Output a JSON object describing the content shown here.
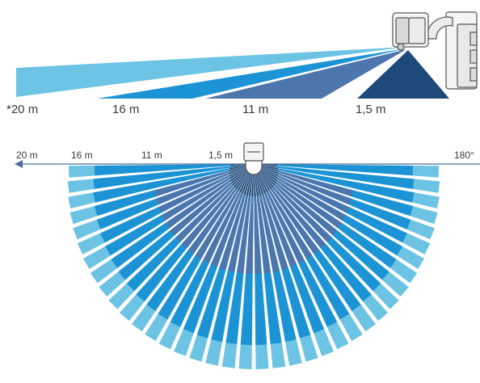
{
  "side_view": {
    "range_labels": [
      "*20 m",
      "16 m",
      "11 m",
      "1,5 m"
    ]
  },
  "top_view": {
    "range_labels": [
      "20 m",
      "16 m",
      "11 m",
      "1,5 m"
    ],
    "angle_label": "180°"
  },
  "zones": [
    {
      "range": "20 m",
      "color": "#6dc3e3"
    },
    {
      "range": "16 m",
      "color": "#1c93d4"
    },
    {
      "range": "11 m",
      "color": "#4d76ad"
    },
    {
      "range": "1,5 m",
      "color": "#1e4a7b"
    }
  ],
  "colors": {
    "axis": "#4a6f96",
    "sensor_stroke": "#555555",
    "sensor_fill": "#f2f2f2",
    "sensor_lens": "#d6d6d6"
  }
}
